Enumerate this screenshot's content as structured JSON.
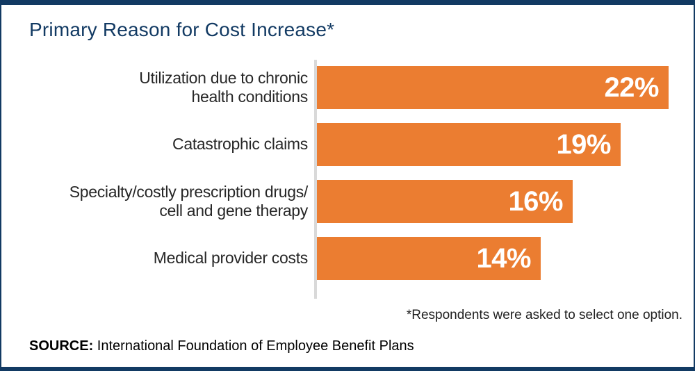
{
  "title": "Primary Reason for Cost Increase*",
  "footnote": "*Respondents were asked to select one option.",
  "source": {
    "prefix": "SOURCE:",
    "text": "International Foundation of Employee Benefit Plans"
  },
  "colors": {
    "navy": "#123A63",
    "orange": "#EB7D31",
    "axis_gray": "#D9D9D9",
    "label_dark": "#272727",
    "value_label": "#FFFFFF"
  },
  "chart_data": {
    "type": "bar",
    "orientation": "horizontal",
    "title": "Primary Reason for Cost Increase*",
    "categories": [
      "Utilization due to chronic health conditions",
      "Catastrophic claims",
      "Specialty/costly prescription drugs/ cell and gene therapy",
      "Medical provider costs"
    ],
    "categories_display": [
      "Utilization due to chronic\nhealth conditions",
      "Catastrophic claims",
      "Specialty/costly prescription drugs/\ncell and gene therapy",
      "Medical provider costs"
    ],
    "values": [
      22,
      19,
      16,
      14
    ],
    "value_labels": [
      "22%",
      "19%",
      "16%",
      "14%"
    ],
    "unit": "%",
    "xlim": [
      0,
      23
    ],
    "bar_color": "#EB7D31",
    "value_label_position": "inside-right",
    "gridlines": false,
    "legend": false,
    "baseline": "light-gray vertical line at zero"
  }
}
